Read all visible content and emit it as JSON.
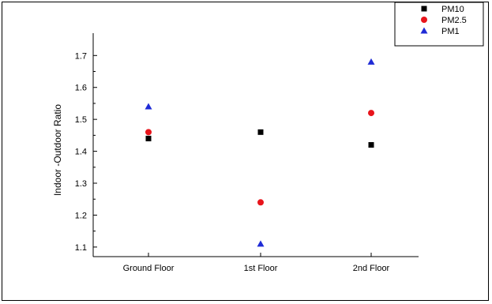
{
  "chart_data": {
    "type": "scatter",
    "title": "",
    "xlabel": "",
    "ylabel": "Indoor -Outdoor Ratio",
    "categories": [
      "Ground Floor",
      "1st Floor",
      "2nd Floor"
    ],
    "ylim": [
      1.07,
      1.77
    ],
    "yticks": [
      1.1,
      1.2,
      1.3,
      1.4,
      1.5,
      1.6,
      1.7
    ],
    "grid": false,
    "legend_position": "top-right",
    "series": [
      {
        "name": "PM10",
        "marker": "square",
        "color": "#000000",
        "values": [
          1.44,
          1.46,
          1.42
        ]
      },
      {
        "name": "PM2.5",
        "marker": "circle",
        "color": "#e8141b",
        "values": [
          1.46,
          1.24,
          1.52
        ]
      },
      {
        "name": "PM1",
        "marker": "triangle",
        "color": "#1f2bd6",
        "values": [
          1.54,
          1.11,
          1.68
        ]
      }
    ]
  }
}
